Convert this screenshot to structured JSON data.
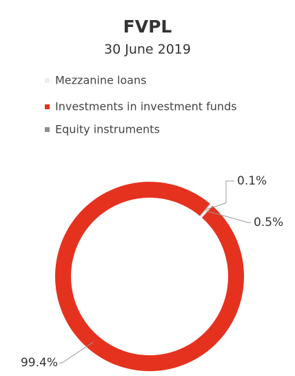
{
  "chart_data": {
    "type": "donut",
    "title": "FVPL",
    "subtitle": "30 June 2019",
    "categories": [
      "Mezzanine loans",
      "Investments in investment funds",
      "Equity instruments"
    ],
    "values": [
      0.5,
      99.4,
      0.1
    ],
    "value_labels": [
      "0.5%",
      "99.4%",
      "0.1%"
    ],
    "colors": [
      "#eeeeee",
      "#e5321f",
      "#8f8f8f"
    ]
  }
}
